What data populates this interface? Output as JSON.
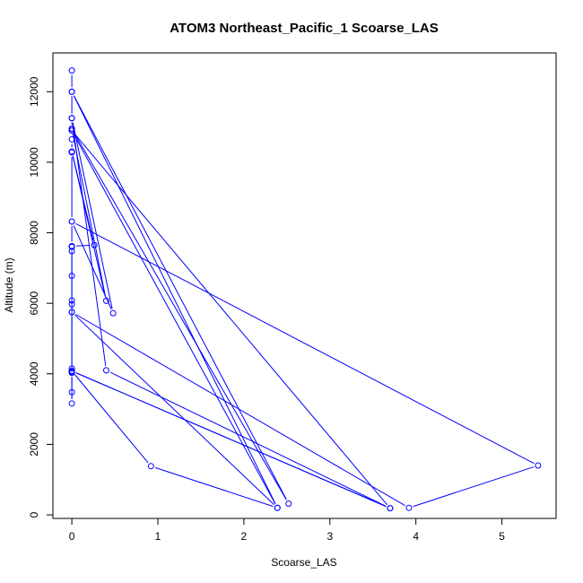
{
  "chart_data": {
    "type": "line",
    "title": "ATOM3 Northeast_Pacific_1 Scoarse_LAS",
    "xlabel": "Scoarse_LAS",
    "ylabel": "Altitude (m)",
    "xlim": [
      -0.22,
      5.63
    ],
    "ylim": [
      -100,
      13100
    ],
    "x_ticks": [
      0,
      1,
      2,
      3,
      4,
      5
    ],
    "y_ticks": [
      0,
      2000,
      4000,
      6000,
      8000,
      10000,
      12000
    ],
    "grid": false,
    "legend": "none",
    "color": "#0000ff",
    "series": [
      {
        "points": [
          [
            0.0,
            12600
          ],
          [
            0.0,
            12000
          ],
          [
            0.0,
            11250
          ],
          [
            0.0,
            10950
          ],
          [
            0.0,
            10900
          ],
          [
            0.0,
            10650
          ],
          [
            0.0,
            10300
          ],
          [
            0.0,
            10280
          ],
          [
            0.0,
            8320
          ],
          [
            0.0,
            7620
          ],
          [
            0.0,
            7600
          ],
          [
            0.0,
            7480
          ],
          [
            0.0,
            6780
          ],
          [
            0.0,
            6080
          ],
          [
            0.0,
            5970
          ],
          [
            0.0,
            5750
          ],
          [
            0.0,
            4150
          ],
          [
            0.0,
            4080
          ],
          [
            0.0,
            4030
          ],
          [
            0.0,
            3480
          ],
          [
            0.0,
            3160
          ],
          [
            0.0,
            4050
          ],
          [
            0.0,
            7620
          ],
          [
            0.26,
            7650
          ],
          [
            0.0,
            10300
          ],
          [
            0.4,
            6070
          ],
          [
            0.0,
            10950
          ],
          [
            2.52,
            320
          ],
          [
            0.0,
            12000
          ],
          [
            2.39,
            200
          ],
          [
            0.0,
            10900
          ],
          [
            3.7,
            190
          ],
          [
            0.0,
            4080
          ],
          [
            0.92,
            1380
          ],
          [
            2.39,
            200
          ],
          [
            0.0,
            5750
          ],
          [
            3.92,
            200
          ],
          [
            5.42,
            1400
          ],
          [
            0.0,
            8320
          ],
          [
            0.48,
            5720
          ],
          [
            0.0,
            11250
          ],
          [
            0.4,
            4100
          ],
          [
            3.7,
            190
          ],
          [
            0.0,
            4080
          ]
        ]
      }
    ]
  }
}
